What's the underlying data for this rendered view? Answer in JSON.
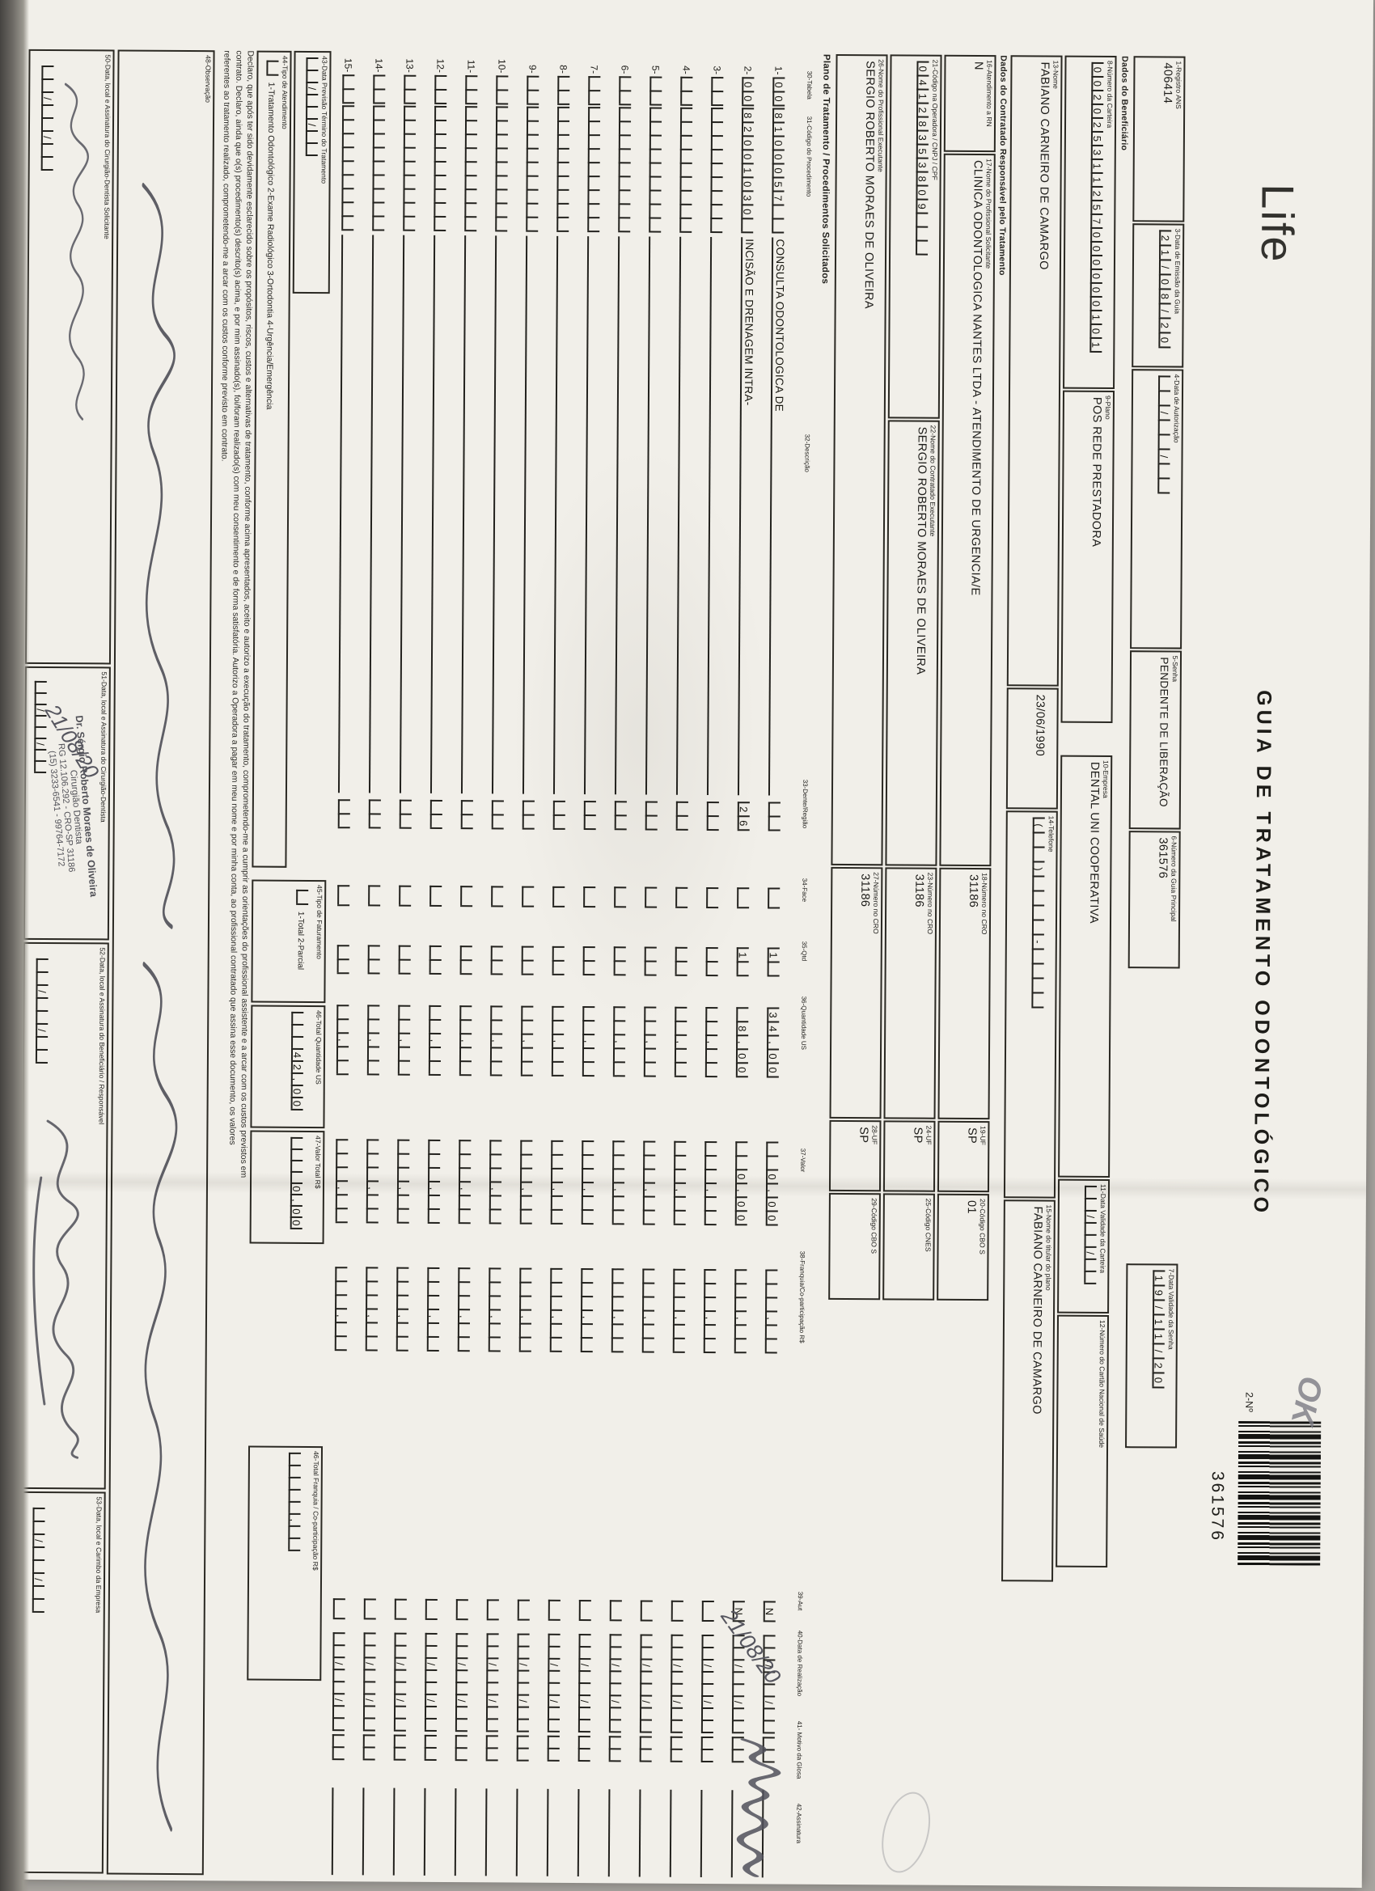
{
  "page": {
    "title": "GUIA DE TRATAMENTO ODONTOLÓGICO",
    "logo": "Life",
    "numero_label": "2-Nº",
    "barcode_number": "361576"
  },
  "sections": {
    "beneficiario": "Dados do Beneficiário",
    "contratado": "Dados do Contratado Responsável pelo Tratamento",
    "plano": "Plano de Tratamento / Procedimentos Solicitados"
  },
  "fields": {
    "f1": {
      "label": "1-Registro ANS",
      "value": "406414"
    },
    "f3": {
      "label": "3-Data de Emissão da Guia",
      "cells": [
        "2",
        "1",
        "/",
        "0",
        "8",
        "/",
        "2",
        "0"
      ]
    },
    "f4": {
      "label": "4-Data de Autorização",
      "cells": [
        "",
        "",
        "/",
        "",
        "",
        "/",
        "",
        ""
      ]
    },
    "f5": {
      "label": "5-Senha",
      "value": "PENDENTE DE LIBERAÇÃO"
    },
    "f6": {
      "label": "6-Número da Guia Principal",
      "value": "361576"
    },
    "f7": {
      "label": "7-Data Validade da Senha",
      "cells": [
        "1",
        "9",
        "/",
        "1",
        "1",
        "/",
        "2",
        "0"
      ]
    },
    "f8": {
      "label": "8-Número da Carteira",
      "cells": [
        "0",
        "0",
        "2",
        "0",
        "2",
        "5",
        "3",
        "1",
        "1",
        "2",
        "5",
        "7",
        "0",
        "0",
        "0",
        "0",
        "0",
        "0",
        "1",
        "0",
        "1"
      ]
    },
    "f9": {
      "label": "9-Plano",
      "value": "POS REDE PRESTADORA"
    },
    "f10": {
      "label": "10-Empresa",
      "value": "DENTAL UNI COOPERATIVA"
    },
    "f11": {
      "label": "11-Data Validade da Carteira",
      "cells": [
        "",
        "",
        "/",
        "",
        "",
        "/",
        "",
        ""
      ]
    },
    "f12": {
      "label": "12-Número do Cartão Nacional de Saúde",
      "value": ""
    },
    "f13": {
      "label": "13-Nome",
      "value": "FABIANO CARNEIRO DE CAMARGO"
    },
    "f13b": {
      "label": "",
      "value": "23/06/1990"
    },
    "f14": {
      "label": "14-Telefone",
      "cells": [
        "(",
        "",
        "",
        ")",
        "",
        "",
        "",
        "",
        "-",
        "",
        "",
        "",
        ""
      ]
    },
    "f15": {
      "label": "15-Nome do titular do plano",
      "value": "FABIANO CARNEIRO DE CAMARGO"
    },
    "f16": {
      "label": "16-Atendimento a RN",
      "value": "N"
    },
    "f17": {
      "label": "17-Nome do Profissional Solicitante",
      "value": "CLINICA ODONTOLOGICA NANTES LTDA - ATENDIMENTO DE URGENCIA/E"
    },
    "f18": {
      "label": "18-Número no CRO",
      "value": "31186"
    },
    "f19": {
      "label": "19-UF",
      "value": "SP"
    },
    "f20": {
      "label": "20-Código CBO S",
      "value": "01"
    },
    "f21": {
      "label": "21-Código na Operadora / CNPJ / CPF",
      "cells": [
        "0",
        "4",
        "1",
        "2",
        "8",
        "3",
        "5",
        "3",
        "8",
        "0",
        "9",
        "",
        "",
        ""
      ]
    },
    "f22": {
      "label": "22-Nome do Contratado Executante",
      "value": "SERGIO ROBERTO MORAES DE OLIVEIRA"
    },
    "f23": {
      "label": "23-Número no CRO",
      "value": "31186"
    },
    "f24": {
      "label": "24-UF",
      "value": "SP"
    },
    "f25": {
      "label": "25-Código CNES",
      "value": ""
    },
    "f26": {
      "label": "26-Nome do Profissional Executante",
      "value": "SERGIO ROBERTO MORAES DE OLIVEIRA"
    },
    "f27": {
      "label": "27-Número no CRO",
      "value": "31186"
    },
    "f28": {
      "label": "28-UF",
      "value": "SP"
    },
    "f29": {
      "label": "29-Código CBO S",
      "value": ""
    },
    "f43": {
      "label": "43-Data Previsão Término do Tratamento",
      "cells": [
        "",
        "",
        "/",
        "",
        "",
        "/",
        "",
        ""
      ]
    },
    "f44": {
      "label": "44-Tipo de Atendimento",
      "legend": "1-Tratamento Odontológico   2-Exame Radiológico   3-Ortodontia   4-Urgência/Emergência",
      "cells": [
        ""
      ]
    },
    "f45": {
      "label": "45-Tipo de Faturamento",
      "legend": "1-Total  2-Parcial",
      "cells": [
        ""
      ]
    },
    "f46": {
      "label": "46-Total Quantidade US",
      "cells": [
        "",
        "",
        "",
        "4",
        "2",
        ",",
        "0",
        "0"
      ]
    },
    "f47": {
      "label": "47-Valor Total R$",
      "cells": [
        "",
        "",
        "",
        "",
        "0",
        ",",
        "0",
        "0"
      ]
    },
    "f46b": {
      "label": "46-Total Franquia / Co-participação R$",
      "cells": [
        "",
        "",
        "",
        "",
        "",
        ",",
        "",
        ""
      ]
    },
    "f48": {
      "label": "48-Observação"
    },
    "f50": {
      "label": "50-Data, local e Assinatura do Cirurgião-Dentista Solicitante",
      "cells": [
        "",
        "",
        "/",
        "",
        "",
        "/",
        "",
        ""
      ]
    },
    "f51": {
      "label": "51-Data, local e Assinatura do Cirurgião-Dentista",
      "cells": [
        "",
        "",
        "/",
        "",
        "",
        "/",
        "",
        ""
      ]
    },
    "f52": {
      "label": "52-Data, local e Assinatura do Beneficiário / Responsável",
      "cells": [
        "",
        "",
        "/",
        "",
        "",
        "/",
        "",
        ""
      ]
    },
    "f53": {
      "label": "53-Data, local e Carimbo da Empresa",
      "cells": [
        "",
        "",
        "/",
        "",
        "",
        "/",
        "",
        ""
      ]
    }
  },
  "table": {
    "headers": {
      "h30": "30-Tabela",
      "h31": "31-Código do Procedimento",
      "h32": "32-Descrição",
      "h33": "33-Dente/Região",
      "h34": "34-Face",
      "h35": "35-Qtd",
      "h36": "36-Quantidade US",
      "h37": "37-Valor",
      "h38": "38-Franquia/Co-participação R$",
      "h39": "39-Aut",
      "h40": "40-Data de Realização",
      "h41": "41- Motivo da Glosa",
      "h42": "42-Assinatura"
    },
    "rows": [
      {
        "num": "1-",
        "tabela": [
          "0",
          "0"
        ],
        "codigo": [
          "8",
          "1",
          "0",
          "0",
          "0",
          "5",
          "7",
          "",
          ""
        ],
        "desc": "CONSULTA ODONTOLOGICA DE",
        "qtd": [
          "1",
          ""
        ],
        "us": [
          "3",
          "4",
          ",",
          "0",
          "0"
        ],
        "valor": [
          "",
          "",
          "0",
          ",",
          "0",
          "0"
        ],
        "aut": [
          "N"
        ]
      },
      {
        "num": "2-",
        "tabela": [
          "0",
          "0"
        ],
        "codigo": [
          "8",
          "2",
          "0",
          "0",
          "1",
          "0",
          "3",
          "0",
          ""
        ],
        "desc": "INCISÃO E DRENAGEM INTRA-",
        "dente": [
          "2",
          "6"
        ],
        "qtd": [
          "1",
          ""
        ],
        "us": [
          "",
          "8",
          ",",
          "0",
          "0"
        ],
        "valor": [
          "",
          "",
          "0",
          ",",
          "0",
          "0"
        ],
        "aut": [
          "N"
        ]
      },
      {
        "num": "3-"
      },
      {
        "num": "4-"
      },
      {
        "num": "5-"
      },
      {
        "num": "6-"
      },
      {
        "num": "7-"
      },
      {
        "num": "8-"
      },
      {
        "num": "9-"
      },
      {
        "num": "10-"
      },
      {
        "num": "11-"
      },
      {
        "num": "12-"
      },
      {
        "num": "13-"
      },
      {
        "num": "14-"
      },
      {
        "num": "15-"
      }
    ]
  },
  "declaration": {
    "lines": [
      "Declaro, que após ter sido devidamente esclarecido sobre os propósitos, riscos, custos e alternativas de tratamento, conforme acima apresentados, aceito e autorizo a execução do tratamento, comprometendo-me a cumprir as orientações do profissional assistente e a arcar com os custos previstos em",
      "contrato. Declaro, ainda que o(s) procedimento(s) descrito(s) acima, e por mim assinado(s), foi/foram realizado(s) com meu consentimento e de forma satisfatória. Autorizo a Operadora a pagar em meu nome e por minha conta, ao profissional contratado que assina esse documento, os valores",
      "referentes ao tratamento realizado, comprometendo-me a arcar com os custos conforme previsto em contrato."
    ]
  },
  "stamp": {
    "name": "Dr. Sérgio Roberto Moraes de Oliveira",
    "title": "Cirurgião Dentista",
    "registry": "RG 12.106.292 - CRO-SP 31186",
    "phone": "(15) 3233-6541 - 99764-7172"
  },
  "handwriting": {
    "ok": "OK",
    "realizacao": "21/08/20",
    "carimbo_data": "21/08/20"
  }
}
